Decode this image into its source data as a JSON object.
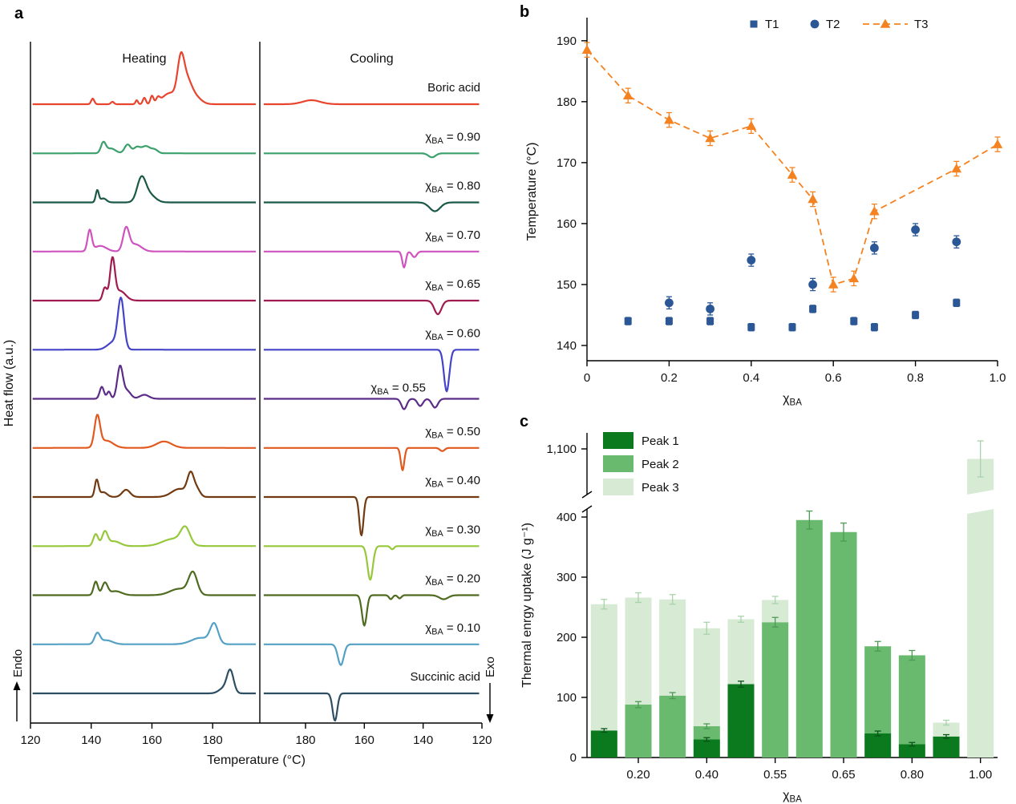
{
  "panels": {
    "a": "a",
    "b": "b",
    "c": "c"
  },
  "chart_data": [
    {
      "id": "dsc",
      "type": "line",
      "panel": "a",
      "ylabel": "Heat flow (a.u.)",
      "xlabel": "Temperature (°C)",
      "heating_label": "Heating",
      "cooling_label": "Cooling",
      "endo_label": "Endo",
      "exo_label": "Exo",
      "heating_range": [
        120,
        195
      ],
      "cooling_range": [
        120,
        195
      ],
      "heating_ticks": [
        120,
        140,
        160,
        180
      ],
      "cooling_ticks": [
        180,
        160,
        140,
        120
      ],
      "curves": [
        {
          "label": "Boric acid",
          "color": "#e8442e",
          "heating": [
            [
              140.5,
              0.5,
              7
            ],
            [
              147,
              0.5,
              3
            ],
            [
              155,
              0.4,
              5
            ],
            [
              157.5,
              0.5,
              8
            ],
            [
              160,
              0.5,
              10
            ],
            [
              162,
              0.6,
              6
            ],
            [
              166,
              2.5,
              14
            ],
            [
              169.5,
              1.1,
              48
            ],
            [
              171.5,
              1.5,
              25
            ],
            [
              174,
              2,
              10
            ]
          ],
          "cooling": [
            [
              178,
              3,
              -5
            ]
          ]
        },
        {
          "label": "χ_BA = 0.90",
          "color": "#3ba06c",
          "heating": [
            [
              144,
              0.8,
              13
            ],
            [
              146.5,
              1.5,
              6
            ],
            [
              152,
              1,
              11
            ],
            [
              155,
              1,
              7
            ],
            [
              158,
              1.5,
              9
            ],
            [
              161,
              1,
              4
            ]
          ],
          "cooling": [
            [
              137,
              1.2,
              5
            ]
          ]
        },
        {
          "label": "χ_BA = 0.80",
          "color": "#1a5948",
          "heating": [
            [
              142,
              0.5,
              15
            ],
            [
              144,
              1,
              5
            ],
            [
              156.5,
              1.4,
              28
            ],
            [
              159,
              2,
              10
            ]
          ],
          "cooling": [
            [
              136,
              1.8,
              11
            ]
          ]
        },
        {
          "label": "χ_BA = 0.70",
          "color": "#cf53be",
          "heating": [
            [
              139.5,
              0.7,
              26
            ],
            [
              143,
              2,
              7
            ],
            [
              151.5,
              1,
              28
            ],
            [
              154.5,
              2,
              9
            ]
          ],
          "cooling": [
            [
              146.5,
              0.6,
              20
            ],
            [
              143,
              0.8,
              7
            ]
          ]
        },
        {
          "label": "χ_BA = 0.65",
          "color": "#a01b50",
          "heating": [
            [
              144.5,
              0.7,
              16
            ],
            [
              147,
              0.8,
              50
            ],
            [
              149.5,
              1.8,
              12
            ]
          ],
          "cooling": [
            [
              135,
              1.2,
              17
            ]
          ]
        },
        {
          "label": "χ_BA = 0.60",
          "color": "#4444c8",
          "heating": [
            [
              147.5,
              2,
              10
            ],
            [
              149.8,
              1.0,
              60
            ]
          ],
          "cooling": [
            [
              132,
              0.9,
              52
            ]
          ]
        },
        {
          "label": "χ_BA = 0.55",
          "color": "#5c2d87",
          "label_dx": -68,
          "label_dy": 7,
          "heating": [
            [
              143.5,
              0.7,
              15
            ],
            [
              145.8,
              0.6,
              9
            ],
            [
              149.5,
              0.9,
              40
            ],
            [
              151.8,
              1.2,
              10
            ],
            [
              157.5,
              1.5,
              5
            ]
          ],
          "cooling": [
            [
              146.5,
              0.9,
              13
            ],
            [
              141,
              0.9,
              9
            ],
            [
              136,
              1,
              11
            ]
          ]
        },
        {
          "label": "χ_BA = 0.50",
          "color": "#e1591f",
          "heating": [
            [
              142,
              0.9,
              38
            ],
            [
              145,
              2.2,
              9
            ],
            [
              164,
              2.5,
              8
            ]
          ],
          "cooling": [
            [
              147,
              0.6,
              28
            ],
            [
              133.5,
              0.8,
              4
            ]
          ]
        },
        {
          "label": "χ_BA = 0.40",
          "color": "#713a10",
          "heating": [
            [
              141.8,
              0.6,
              21
            ],
            [
              144,
              1.2,
              6
            ],
            [
              151.5,
              1.3,
              9
            ],
            [
              169,
              2.5,
              10
            ],
            [
              172.8,
              1.1,
              28
            ],
            [
              175,
              1,
              8
            ]
          ],
          "cooling": [
            [
              161,
              0.7,
              48
            ]
          ]
        },
        {
          "label": "χ_BA = 0.30",
          "color": "#97c83c",
          "heating": [
            [
              141.5,
              0.8,
              15
            ],
            [
              144.5,
              0.9,
              17
            ],
            [
              147.5,
              2,
              6
            ],
            [
              167,
              3.5,
              9
            ],
            [
              171,
              1.5,
              20
            ]
          ],
          "cooling": [
            [
              158,
              0.9,
              42
            ],
            [
              150.5,
              0.6,
              4
            ]
          ]
        },
        {
          "label": "χ_BA = 0.20",
          "color": "#4e6b20",
          "heating": [
            [
              141.5,
              0.7,
              17
            ],
            [
              144.5,
              0.9,
              15
            ],
            [
              148,
              2,
              5
            ],
            [
              169,
              3,
              8
            ],
            [
              173.5,
              1.4,
              27
            ]
          ],
          "cooling": [
            [
              160,
              0.8,
              38
            ],
            [
              151,
              0.6,
              5
            ],
            [
              148,
              0.6,
              4
            ],
            [
              133,
              1.5,
              5
            ]
          ]
        },
        {
          "label": "χ_BA = 0.10",
          "color": "#55a1c5",
          "heating": [
            [
              142,
              0.9,
              13
            ],
            [
              145,
              2,
              5
            ],
            [
              176,
              3,
              8
            ],
            [
              180.5,
              1.3,
              24
            ]
          ],
          "cooling": [
            [
              168,
              1,
              26
            ]
          ]
        },
        {
          "label": "Succinic acid",
          "color": "#2e4f63",
          "heating": [
            [
              183.5,
              1.5,
              6
            ],
            [
              185.8,
              1.1,
              28
            ]
          ],
          "cooling": [
            [
              170,
              0.8,
              34
            ]
          ]
        }
      ]
    },
    {
      "id": "transition-temperatures",
      "type": "scatter",
      "panel": "b",
      "xlabel": "χ_BA",
      "ylabel": "Temperature (°C)",
      "xlim": [
        0,
        1.0
      ],
      "ylim": [
        137.5,
        193
      ],
      "xticks": [
        0,
        0.2,
        0.4,
        0.6,
        0.8,
        1.0
      ],
      "xtick_labels": [
        "0",
        "0.2",
        "0.4",
        "0.6",
        "0.8",
        "1.0"
      ],
      "yticks": [
        140,
        150,
        160,
        170,
        180,
        190
      ],
      "series": [
        {
          "name": "T1",
          "marker": "square",
          "color": "#2b5796",
          "err": 0.6,
          "x": [
            0.1,
            0.2,
            0.3,
            0.4,
            0.5,
            0.55,
            0.65,
            0.7,
            0.8,
            0.9
          ],
          "y": [
            144,
            144,
            144,
            143,
            143,
            146,
            144,
            143,
            145,
            147
          ]
        },
        {
          "name": "T2",
          "marker": "circle",
          "color": "#2b5796",
          "err": 1.0,
          "x": [
            0.2,
            0.3,
            0.4,
            0.55,
            0.7,
            0.8,
            0.9
          ],
          "y": [
            147,
            146,
            154,
            150,
            156,
            159,
            157
          ]
        },
        {
          "name": "T3",
          "marker": "triangle",
          "color": "#f58220",
          "err": 1.2,
          "line": "dashed",
          "x": [
            0,
            0.1,
            0.2,
            0.3,
            0.4,
            0.5,
            0.55,
            0.6,
            0.65,
            0.7,
            0.9,
            1.0
          ],
          "y": [
            188.5,
            181,
            177,
            174,
            176,
            168,
            164,
            150,
            151,
            162,
            169,
            173
          ]
        }
      ]
    },
    {
      "id": "thermal-energy-uptake",
      "type": "bar",
      "panel": "c",
      "xlabel": "χ_BA",
      "ylabel": "Thermal enrgy uptake (J g⁻¹)",
      "yticks": [
        0,
        100,
        200,
        300,
        400
      ],
      "upper_tick": "1,100",
      "upper_tick_value": 1100,
      "categories": [
        "0.10",
        "0.20",
        "0.30",
        "0.40",
        "0.50",
        "0.55",
        "0.60",
        "0.65",
        "0.70",
        "0.80",
        "0.90",
        "1.00"
      ],
      "xtick_positions": [
        1,
        3,
        5,
        7,
        9,
        11
      ],
      "xtick_labels": [
        "0.20",
        "0.40",
        "0.55",
        "0.65",
        "0.80",
        "1.00"
      ],
      "series": [
        {
          "name": "Peak 1",
          "color": "#0b7a1f",
          "err_color": "#07521a",
          "values": [
            45,
            0,
            0,
            30,
            122,
            0,
            0,
            0,
            40,
            22,
            35,
            0
          ],
          "errors": [
            3,
            0,
            0,
            3,
            5,
            0,
            0,
            0,
            4,
            3,
            3,
            0
          ]
        },
        {
          "name": "Peak 2",
          "color": "#69b96e",
          "err_color": "#4e9a55",
          "values": [
            0,
            88,
            103,
            22,
            0,
            225,
            395,
            375,
            145,
            148,
            0,
            0
          ],
          "errors": [
            0,
            5,
            5,
            4,
            0,
            8,
            15,
            15,
            8,
            8,
            0,
            0
          ]
        },
        {
          "name": "Peak 3",
          "color": "#d6ead4",
          "err_color": "#a9d3aa",
          "values": [
            210,
            178,
            160,
            163,
            108,
            37,
            0,
            0,
            0,
            0,
            23,
            1075
          ],
          "errors": [
            8,
            8,
            8,
            10,
            5,
            6,
            0,
            0,
            0,
            0,
            4,
            45
          ]
        }
      ]
    }
  ]
}
